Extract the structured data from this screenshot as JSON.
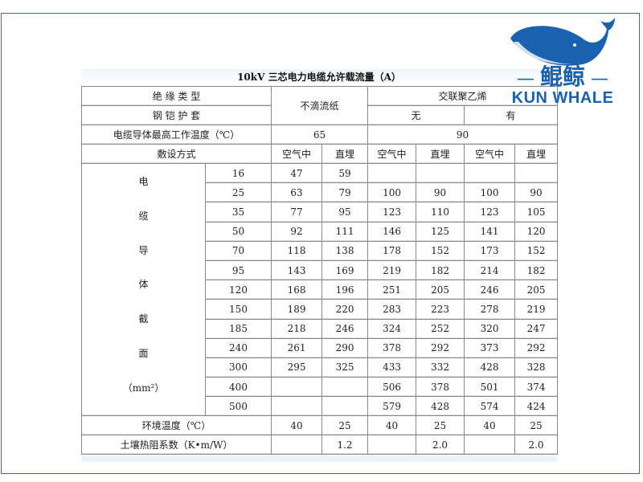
{
  "title": "10kV 三芯电力电缆允许载流量（A）",
  "logo": {
    "cn": "鲲鲸",
    "en": "KUN WHALE",
    "color": "#1a62b0",
    "icon": "whale-icon"
  },
  "header": {
    "insulation_label": "绝 缘 类 型",
    "armor_label": "钢 铠 护 套",
    "paper": "不滴流纸",
    "xlpe": "交联聚乙烯",
    "no_armor": "无",
    "armor": "有",
    "max_temp_label": "电缆导体最高工作温度（℃）",
    "temp_paper": "65",
    "temp_xlpe": "90",
    "laying_label": "敷设方式",
    "laying": [
      "空气中",
      "直埋",
      "空气中",
      "直埋",
      "空气中",
      "直埋"
    ]
  },
  "section_label": [
    "电",
    "缆",
    "导",
    "体",
    "截",
    "面",
    "（mm²）"
  ],
  "rows": [
    [
      "16",
      "47",
      "59",
      "",
      "",
      "",
      ""
    ],
    [
      "25",
      "63",
      "79",
      "100",
      "90",
      "100",
      "90"
    ],
    [
      "35",
      "77",
      "95",
      "123",
      "110",
      "123",
      "105"
    ],
    [
      "50",
      "92",
      "111",
      "146",
      "125",
      "141",
      "120"
    ],
    [
      "70",
      "118",
      "138",
      "178",
      "152",
      "173",
      "152"
    ],
    [
      "95",
      "143",
      "169",
      "219",
      "182",
      "214",
      "182"
    ],
    [
      "120",
      "168",
      "196",
      "251",
      "205",
      "246",
      "205"
    ],
    [
      "150",
      "189",
      "220",
      "283",
      "223",
      "278",
      "219"
    ],
    [
      "185",
      "218",
      "246",
      "324",
      "252",
      "320",
      "247"
    ],
    [
      "240",
      "261",
      "290",
      "378",
      "292",
      "373",
      "292"
    ],
    [
      "300",
      "295",
      "325",
      "433",
      "332",
      "428",
      "328"
    ],
    [
      "400",
      "",
      "",
      "506",
      "378",
      "501",
      "374"
    ],
    [
      "500",
      "",
      "",
      "579",
      "428",
      "574",
      "424"
    ]
  ],
  "ambient": {
    "label": "环境温度（℃）",
    "values": [
      "40",
      "25",
      "40",
      "25",
      "40",
      "25"
    ]
  },
  "soil": {
    "label": "土壤热阻系数（K•m/W）",
    "values": [
      "",
      "1.2",
      "",
      "2.0",
      "",
      "2.0"
    ]
  }
}
